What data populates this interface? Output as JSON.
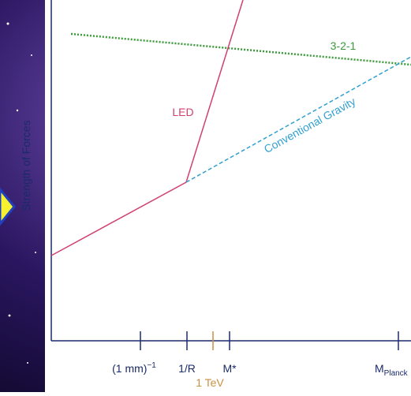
{
  "axis_label": "Strength of Forces",
  "curves": [
    {
      "label": "3-2-1"
    },
    {
      "label": "LED"
    },
    {
      "label": "Conventional Gravity"
    }
  ],
  "ticks": [
    {
      "label": "(1 mm)",
      "sup": "−1"
    },
    {
      "label": "1/R"
    },
    {
      "label": "M*"
    },
    {
      "label": "M",
      "sub": "Planck"
    }
  ],
  "marker": {
    "label": "1 TeV"
  }
}
